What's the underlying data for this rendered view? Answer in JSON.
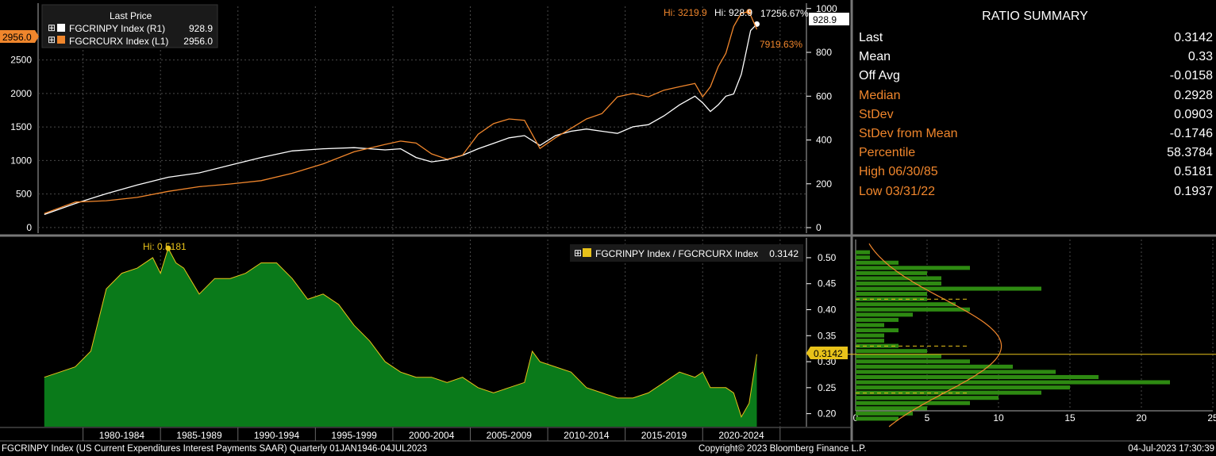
{
  "colors": {
    "orange": "#f0862c",
    "white": "#ffffff",
    "green_fill": "#0a7a1a",
    "yellow": "#e8c21a",
    "grid": "#555555"
  },
  "top_panel": {
    "legend_title": "Last Price",
    "series": [
      {
        "label": "FGCRINPY Index  (R1)",
        "value": "928.9",
        "color": "#ffffff"
      },
      {
        "label": "FGCRCURX Index  (L1)",
        "value": "2956.0",
        "color": "#f0862c"
      }
    ],
    "hi_orange": "Hi: 3219.9",
    "hi_white": "Hi: 928.9",
    "pct_white": "17256.67%",
    "pct_orange": "7919.63%",
    "right_last_tag": "928.9",
    "left_last_tag": "2956.0"
  },
  "bottom_panel": {
    "legend": "FGCRINPY Index / FGCRCURX Index",
    "legend_value": "0.3142",
    "hi_label": "Hi: 0.5181",
    "last_tag": "0.3142"
  },
  "summary": {
    "title": "RATIO SUMMARY",
    "rows": [
      {
        "label": "Last",
        "value": "0.3142",
        "orange": false
      },
      {
        "label": "Mean",
        "value": "0.33",
        "orange": false
      },
      {
        "label": "Off Avg",
        "value": "-0.0158",
        "orange": false
      },
      {
        "label": "Median",
        "value": "0.2928",
        "orange": true
      },
      {
        "label": "StDev",
        "value": "0.0903",
        "orange": true
      },
      {
        "label": "StDev from Mean",
        "value": "-0.1746",
        "orange": true
      },
      {
        "label": "Percentile",
        "value": "58.3784",
        "orange": true
      },
      {
        "label": "High 06/30/85",
        "value": "0.5181",
        "orange": true
      },
      {
        "label": "Low 03/31/22",
        "value": "0.1937",
        "orange": true
      }
    ]
  },
  "footer": {
    "left": "FGCRINPY Index (US Current Expenditures Interest Payments SAAR)  Quarterly 01JAN1946-04JUL2023",
    "center": "Copyright© 2023 Bloomberg Finance L.P.",
    "right": "04-Jul-2023 17:30:39"
  },
  "chart_data": [
    {
      "type": "line",
      "x_categories": [
        "1980-1984",
        "1985-1989",
        "1990-1994",
        "1995-1999",
        "2000-2004",
        "2005-2009",
        "2010-2014",
        "2015-2019",
        "2020-2024"
      ],
      "y_left": {
        "ticks": [
          0,
          500,
          1000,
          1500,
          2000,
          2500
        ],
        "range": [
          -60,
          3300
        ]
      },
      "y_right": {
        "ticks": [
          0,
          200,
          400,
          600,
          800,
          1000
        ],
        "range": [
          -18,
          1010
        ]
      },
      "series": [
        {
          "name": "FGCRINPY Index",
          "axis": "right",
          "color": "#ffffff",
          "x": [
            1977,
            1979,
            1981,
            1983,
            1985,
            1987,
            1989,
            1991,
            1993,
            1995,
            1997,
            1999,
            2000,
            2001,
            2002,
            2003,
            2004,
            2005,
            2006,
            2007,
            2008,
            2009,
            2010,
            2011,
            2012,
            2013,
            2014,
            2015,
            2016,
            2017,
            2018,
            2019,
            2019.5,
            2020,
            2020.5,
            2021,
            2021.5,
            2022,
            2022.3,
            2022.6,
            2023
          ],
          "values": [
            60,
            110,
            155,
            195,
            230,
            250,
            285,
            320,
            350,
            360,
            365,
            355,
            360,
            320,
            300,
            310,
            330,
            360,
            385,
            410,
            420,
            375,
            420,
            440,
            450,
            440,
            430,
            460,
            470,
            510,
            560,
            600,
            570,
            530,
            560,
            600,
            610,
            700,
            800,
            900,
            928.9
          ]
        },
        {
          "name": "FGCRCURX Index",
          "axis": "left",
          "color": "#f0862c",
          "x": [
            1977,
            1979,
            1981,
            1983,
            1985,
            1987,
            1989,
            1991,
            1993,
            1995,
            1997,
            1999,
            2000,
            2001,
            2002,
            2003,
            2004,
            2005,
            2006,
            2007,
            2008,
            2009,
            2010,
            2011,
            2012,
            2013,
            2014,
            2015,
            2016,
            2017,
            2018,
            2019,
            2019.5,
            2020,
            2020.5,
            2021,
            2021.5,
            2022,
            2022.5,
            2023
          ],
          "values": [
            210,
            380,
            400,
            450,
            540,
            610,
            650,
            700,
            810,
            950,
            1130,
            1240,
            1290,
            1260,
            1100,
            1020,
            1080,
            1390,
            1550,
            1620,
            1600,
            1180,
            1340,
            1480,
            1620,
            1700,
            1950,
            2000,
            1950,
            2050,
            2100,
            2150,
            1950,
            2100,
            2400,
            2600,
            3000,
            3200,
            3219.9,
            2956
          ]
        }
      ]
    },
    {
      "type": "area",
      "series": [
        {
          "name": "FGCRINPY Index / FGCRCURX Index",
          "color": "#0a7a1a",
          "x": [
            1977,
            1978,
            1979,
            1980,
            1981,
            1982,
            1983,
            1984,
            1984.5,
            1985,
            1985.5,
            1986,
            1987,
            1988,
            1989,
            1990,
            1991,
            1992,
            1993,
            1994,
            1995,
            1996,
            1997,
            1998,
            1999,
            2000,
            2001,
            2002,
            2003,
            2004,
            2005,
            2006,
            2007,
            2008,
            2008.5,
            2009,
            2010,
            2011,
            2012,
            2013,
            2014,
            2015,
            2016,
            2017,
            2018,
            2019,
            2019.5,
            2020,
            2021,
            2021.5,
            2022,
            2022.5,
            2023
          ],
          "values": [
            0.27,
            0.28,
            0.29,
            0.32,
            0.44,
            0.47,
            0.48,
            0.5,
            0.47,
            0.5181,
            0.49,
            0.48,
            0.43,
            0.46,
            0.46,
            0.47,
            0.49,
            0.49,
            0.46,
            0.42,
            0.43,
            0.41,
            0.37,
            0.34,
            0.3,
            0.28,
            0.27,
            0.27,
            0.26,
            0.27,
            0.25,
            0.24,
            0.25,
            0.26,
            0.32,
            0.3,
            0.29,
            0.28,
            0.25,
            0.24,
            0.23,
            0.23,
            0.24,
            0.26,
            0.28,
            0.27,
            0.28,
            0.25,
            0.25,
            0.24,
            0.1937,
            0.22,
            0.3142
          ]
        }
      ],
      "y_ticks": [
        0.2,
        0.25,
        0.3,
        0.35,
        0.4,
        0.45,
        0.5
      ],
      "y_range": [
        0.175,
        0.535
      ]
    },
    {
      "type": "bar",
      "orientation": "horizontal",
      "bins": [
        0.19,
        0.2,
        0.21,
        0.22,
        0.23,
        0.24,
        0.25,
        0.26,
        0.27,
        0.28,
        0.29,
        0.3,
        0.31,
        0.32,
        0.33,
        0.34,
        0.35,
        0.36,
        0.37,
        0.38,
        0.39,
        0.4,
        0.41,
        0.42,
        0.43,
        0.44,
        0.45,
        0.46,
        0.47,
        0.48,
        0.49,
        0.5,
        0.51
      ],
      "counts": [
        3,
        4,
        5,
        8,
        10,
        13,
        15,
        22,
        17,
        14,
        11,
        8,
        6,
        5,
        3,
        2,
        2,
        3,
        2,
        3,
        4,
        8,
        7,
        5,
        5,
        13,
        6,
        6,
        5,
        8,
        3,
        1,
        1
      ],
      "x_ticks": [
        0,
        5,
        10,
        15,
        20,
        25
      ],
      "x_range": [
        0,
        25
      ],
      "mean": 0.33,
      "last": 0.3142,
      "stdev": 0.0903
    }
  ]
}
